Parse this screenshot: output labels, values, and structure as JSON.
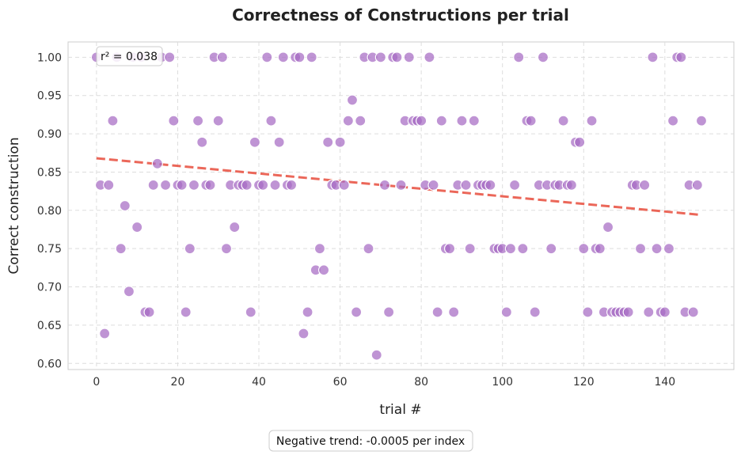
{
  "chart_data": {
    "type": "scatter",
    "title": "Correctness of Constructions per trial",
    "xlabel": "trial #",
    "ylabel": "Correct construction",
    "xlim": [
      -7,
      157
    ],
    "ylim": [
      0.592,
      1.02
    ],
    "xticks": [
      0,
      20,
      40,
      60,
      80,
      100,
      120,
      140
    ],
    "yticks": [
      0.6,
      0.65,
      0.7,
      0.75,
      0.8,
      0.85,
      0.9,
      0.95,
      1.0
    ],
    "ytick_labels": [
      "0.60",
      "0.65",
      "0.70",
      "0.75",
      "0.80",
      "0.85",
      "0.90",
      "0.95",
      "1.00"
    ],
    "grid": true,
    "colors": {
      "points": "#a66bc4",
      "trend": "#e74c3c"
    },
    "annotation": "r² = 0.038",
    "footnote": "Negative trend: -0.0005 per index",
    "trend_line": {
      "x": [
        0,
        149
      ],
      "y": [
        0.868,
        0.794
      ]
    },
    "points": {
      "x": [
        0,
        1,
        2,
        3,
        4,
        5,
        6,
        7,
        8,
        9,
        10,
        11,
        12,
        13,
        14,
        15,
        16,
        17,
        18,
        19,
        20,
        21,
        22,
        23,
        24,
        25,
        26,
        27,
        28,
        29,
        30,
        31,
        32,
        33,
        34,
        35,
        36,
        37,
        38,
        39,
        40,
        41,
        42,
        43,
        44,
        45,
        46,
        47,
        48,
        49,
        50,
        51,
        52,
        53,
        54,
        55,
        56,
        57,
        58,
        59,
        60,
        61,
        62,
        63,
        64,
        65,
        66,
        67,
        68,
        69,
        70,
        71,
        72,
        73,
        74,
        75,
        76,
        77,
        78,
        79,
        80,
        81,
        82,
        83,
        84,
        85,
        86,
        87,
        88,
        89,
        90,
        91,
        92,
        93,
        94,
        95,
        96,
        97,
        98,
        99,
        100,
        101,
        102,
        103,
        104,
        105,
        106,
        107,
        108,
        109,
        110,
        111,
        112,
        113,
        114,
        115,
        116,
        117,
        118,
        119,
        120,
        121,
        122,
        123,
        124,
        125,
        126,
        127,
        128,
        129,
        130,
        131,
        132,
        133,
        134,
        135,
        136,
        137,
        138,
        139,
        140,
        141,
        142,
        143,
        144,
        145,
        146,
        147,
        148,
        149
      ],
      "y": [
        1.0,
        0.833,
        0.639,
        0.833,
        0.917,
        1.0,
        0.75,
        0.806,
        0.694,
        1.0,
        0.778,
        1.0,
        0.667,
        0.667,
        0.833,
        0.861,
        1.0,
        0.833,
        1.0,
        0.917,
        0.833,
        0.833,
        0.667,
        0.75,
        0.833,
        0.917,
        0.889,
        0.833,
        0.833,
        1.0,
        0.917,
        1.0,
        0.75,
        0.833,
        0.778,
        0.833,
        0.833,
        0.833,
        0.667,
        0.889,
        0.833,
        0.833,
        1.0,
        0.917,
        0.833,
        0.889,
        1.0,
        0.833,
        0.833,
        1.0,
        1.0,
        0.639,
        0.667,
        1.0,
        0.722,
        0.75,
        0.722,
        0.889,
        0.833,
        0.833,
        0.889,
        0.833,
        0.917,
        0.944,
        0.667,
        0.917,
        1.0,
        0.75,
        1.0,
        0.611,
        1.0,
        0.833,
        0.667,
        1.0,
        1.0,
        0.833,
        0.917,
        1.0,
        0.917,
        0.917,
        0.917,
        0.833,
        1.0,
        0.833,
        0.667,
        0.917,
        0.75,
        0.75,
        0.667,
        0.833,
        0.917,
        0.833,
        0.75,
        0.917,
        0.833,
        0.833,
        0.833,
        0.833,
        0.75,
        0.75,
        0.75,
        0.667,
        0.75,
        0.833,
        1.0,
        0.75,
        0.917,
        0.917,
        0.667,
        0.833,
        1.0,
        0.833,
        0.75,
        0.833,
        0.833,
        0.917,
        0.833,
        0.833,
        0.889,
        0.889,
        0.75,
        0.667,
        0.917,
        0.75,
        0.75,
        0.667,
        0.778,
        0.667,
        0.667,
        0.667,
        0.667,
        0.667,
        0.833,
        0.833,
        0.75,
        0.833,
        0.667,
        1.0,
        0.75,
        0.667,
        0.667,
        0.75,
        0.917,
        1.0,
        1.0,
        0.667,
        0.833,
        0.667,
        0.833,
        0.917
      ]
    }
  }
}
